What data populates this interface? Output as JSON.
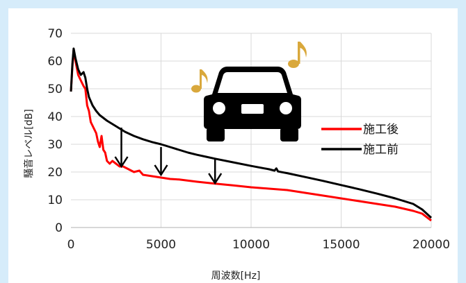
{
  "chart_data": {
    "type": "line",
    "title": "",
    "xlabel": "周波数[Hz]",
    "ylabel": "騒音レベル[dB]",
    "xlim": [
      0,
      20000
    ],
    "ylim": [
      0,
      70
    ],
    "xticks": [
      0,
      5000,
      10000,
      15000,
      20000
    ],
    "yticks": [
      0,
      10,
      20,
      30,
      40,
      50,
      60,
      70
    ],
    "grid": true,
    "legend_position": "right",
    "series": [
      {
        "name": "施工後",
        "color": "#ff0000",
        "points": [
          [
            0,
            49
          ],
          [
            80,
            58
          ],
          [
            150,
            64
          ],
          [
            250,
            60
          ],
          [
            400,
            55
          ],
          [
            550,
            53
          ],
          [
            700,
            51
          ],
          [
            800,
            50
          ],
          [
            900,
            44
          ],
          [
            1000,
            42
          ],
          [
            1100,
            38
          ],
          [
            1250,
            36
          ],
          [
            1400,
            34
          ],
          [
            1500,
            31
          ],
          [
            1600,
            29
          ],
          [
            1700,
            33
          ],
          [
            1800,
            28
          ],
          [
            1900,
            27
          ],
          [
            2000,
            24
          ],
          [
            2150,
            23
          ],
          [
            2300,
            24
          ],
          [
            2500,
            23
          ],
          [
            2700,
            22
          ],
          [
            2900,
            22
          ],
          [
            3200,
            21
          ],
          [
            3500,
            20
          ],
          [
            3800,
            20.5
          ],
          [
            4000,
            19
          ],
          [
            4500,
            18.5
          ],
          [
            5000,
            18
          ],
          [
            5500,
            17.5
          ],
          [
            6000,
            17.3
          ],
          [
            7000,
            16.5
          ],
          [
            8000,
            15.8
          ],
          [
            9000,
            15.2
          ],
          [
            10000,
            14.5
          ],
          [
            11000,
            14
          ],
          [
            12000,
            13.5
          ],
          [
            13000,
            12.5
          ],
          [
            14000,
            11.5
          ],
          [
            15000,
            10.5
          ],
          [
            16000,
            9.5
          ],
          [
            17000,
            8.5
          ],
          [
            18000,
            7.5
          ],
          [
            19000,
            6
          ],
          [
            19500,
            5
          ],
          [
            20000,
            2.5
          ]
        ]
      },
      {
        "name": "施工前",
        "color": "#000000",
        "points": [
          [
            0,
            49
          ],
          [
            80,
            59
          ],
          [
            150,
            64.5
          ],
          [
            250,
            61
          ],
          [
            400,
            57
          ],
          [
            550,
            55
          ],
          [
            700,
            56
          ],
          [
            800,
            54
          ],
          [
            900,
            50
          ],
          [
            1000,
            47
          ],
          [
            1200,
            44
          ],
          [
            1400,
            42
          ],
          [
            1600,
            40.5
          ],
          [
            1800,
            39.5
          ],
          [
            2000,
            38.5
          ],
          [
            2500,
            36.5
          ],
          [
            3000,
            34.5
          ],
          [
            3500,
            33
          ],
          [
            4000,
            31.8
          ],
          [
            4500,
            30.8
          ],
          [
            5000,
            30
          ],
          [
            5500,
            29
          ],
          [
            6000,
            28
          ],
          [
            6500,
            27
          ],
          [
            7000,
            26.2
          ],
          [
            7500,
            25.5
          ],
          [
            8000,
            24.8
          ],
          [
            9000,
            23.5
          ],
          [
            10000,
            22.2
          ],
          [
            11000,
            21
          ],
          [
            11300,
            20.5
          ],
          [
            11400,
            21.3
          ],
          [
            11500,
            20.2
          ],
          [
            12000,
            19.6
          ],
          [
            13000,
            18.2
          ],
          [
            14000,
            16.8
          ],
          [
            15000,
            15.3
          ],
          [
            16000,
            13.8
          ],
          [
            17000,
            12.2
          ],
          [
            18000,
            10.5
          ],
          [
            19000,
            8.5
          ],
          [
            19500,
            6.5
          ],
          [
            20000,
            3.5
          ]
        ]
      }
    ],
    "annotations": {
      "reduction_arrows_at_hz": [
        2800,
        5000,
        8000
      ],
      "reduction_arrow_ranges_db": [
        [
          36,
          22
        ],
        [
          29,
          19
        ],
        [
          25,
          16
        ]
      ],
      "illustration": "car-icon with music-note-icon"
    }
  },
  "colors": {
    "page_background": "#d6ecfa",
    "panel_background": "#ffffff",
    "grid": "#d9d9d9",
    "note_gold": "#d9a83c"
  },
  "icons": [
    "car-icon",
    "music-note-icon",
    "down-arrow-icon"
  ]
}
